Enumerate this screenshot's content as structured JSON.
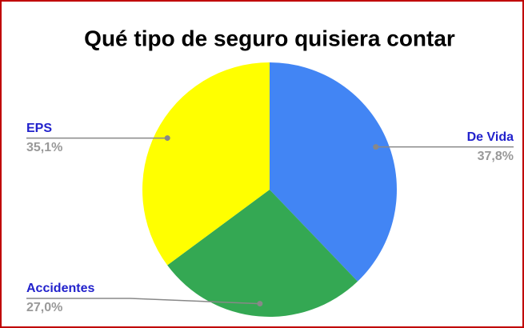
{
  "chart_data": {
    "type": "pie",
    "title": "Qué tipo de seguro quisiera contar",
    "categories": [
      "De Vida",
      "Accidentes",
      "EPS"
    ],
    "values": [
      37.8,
      27.0,
      35.1
    ],
    "value_labels": [
      "37,8%",
      "27,0%",
      "35,1%"
    ],
    "colors": [
      "#4285f4",
      "#34a853",
      "#ffff00"
    ]
  }
}
